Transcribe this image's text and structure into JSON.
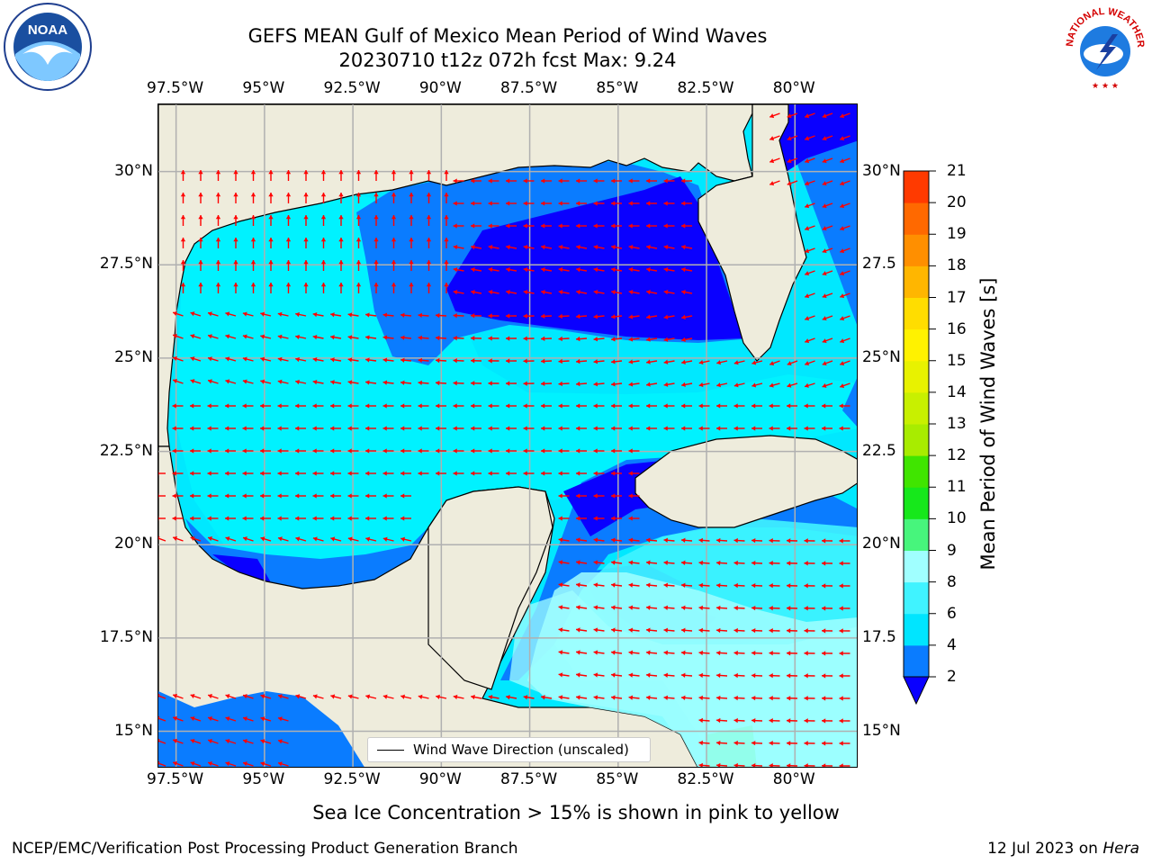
{
  "title": {
    "line1": "GEFS MEAN Gulf of Mexico Mean Period of Wind Waves",
    "line2": "20230710 t12z 072h fcst   Max: 9.24"
  },
  "map": {
    "lon_ticks": [
      "97.5°W",
      "95°W",
      "92.5°W",
      "90°W",
      "87.5°W",
      "85°W",
      "82.5°W",
      "80°W"
    ],
    "lat_ticks_left": [
      "30°N",
      "27.5°N",
      "25°N",
      "22.5°N",
      "20°N",
      "17.5°N",
      "15°N"
    ],
    "lat_ticks_right": [
      "30°N",
      "27.5",
      "25°N",
      "22.5",
      "20°N",
      "17.5",
      "15°N"
    ],
    "lon_range": [
      -98,
      -78.2
    ],
    "lat_range": [
      14,
      31.8
    ],
    "land_color": "#eeecdc",
    "grid_color": "#b0b0b0",
    "arrow_color": "#ff0000",
    "legend_label": "Wind Wave Direction (unscaled)"
  },
  "colorbar": {
    "label": "Mean Period of Wind Waves [s]",
    "ticks": [
      "2",
      "4",
      "6",
      "8",
      "9",
      "10",
      "11",
      "12",
      "13",
      "14",
      "15",
      "16",
      "17",
      "18",
      "19",
      "20",
      "21"
    ],
    "colors": [
      "#0a7cff",
      "#00e5ff",
      "#40f3ff",
      "#a0ffff",
      "#47f57c",
      "#16e81b",
      "#40e500",
      "#a8ec00",
      "#c8f000",
      "#e8f200",
      "#fff200",
      "#ffdd00",
      "#ffb600",
      "#ff8f00",
      "#ff6900",
      "#ff3a00",
      "#ff0000"
    ],
    "under_color": "#0a00ff"
  },
  "note": "Sea Ice Concentration > 15% is shown in pink to yellow",
  "footer": {
    "left": "NCEP/EMC/Verification Post Processing Product Generation Branch",
    "date": "12 Jul 2023 on ",
    "machine": "Hera"
  },
  "logos": {
    "noaa_text": "NOAA",
    "nws_text": "NATIONAL WEATHER SERVICE"
  }
}
